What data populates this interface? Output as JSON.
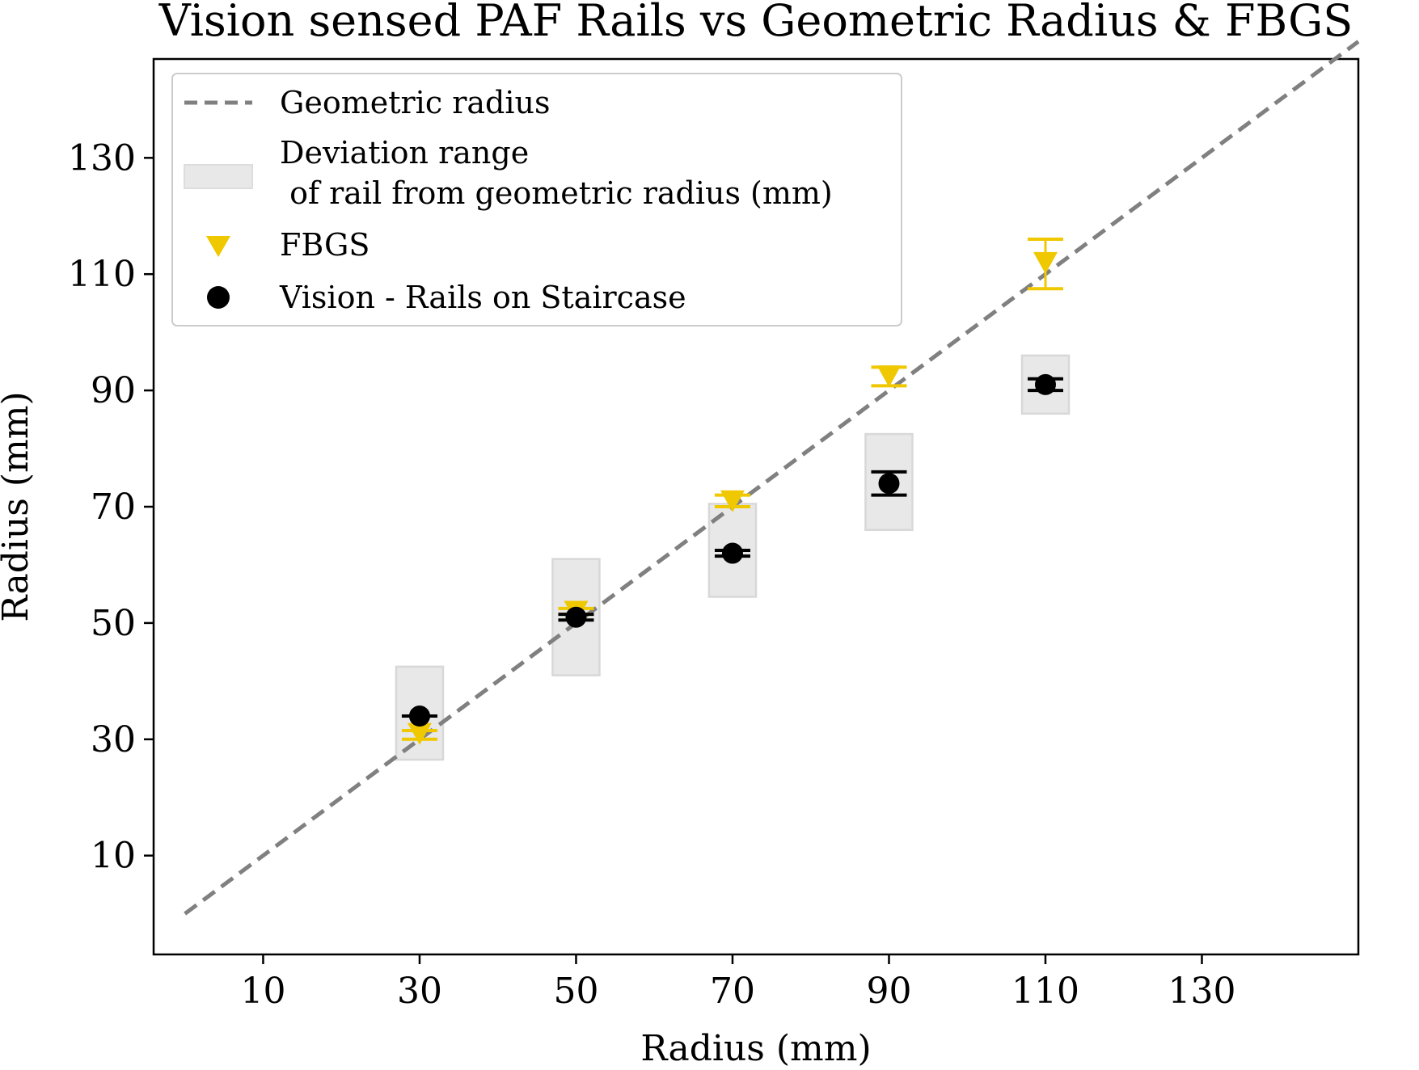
{
  "chart_data": {
    "type": "scatter",
    "title": "Vision sensed PAF Rails vs Geometric Radius & FBGS",
    "xlabel": "Radius (mm)",
    "ylabel": "Radius (mm)",
    "xlim": [
      -4,
      150
    ],
    "ylim": [
      -7,
      147
    ],
    "xticks": [
      10,
      30,
      50,
      70,
      90,
      110,
      130
    ],
    "yticks": [
      10,
      30,
      50,
      70,
      90,
      110,
      130
    ],
    "grid": false,
    "legend_position": "upper-left",
    "legend": [
      "Geometric radius",
      "Deviation range\n of rail from geometric radius (mm)",
      "FBGS",
      "Vision - Rails on Staircase"
    ],
    "geometric_line": {
      "x": [
        0,
        150
      ],
      "y": [
        0,
        150
      ],
      "color": "#808080"
    },
    "deviation_boxes": {
      "color": "#e8e8e8",
      "x": [
        30,
        50,
        70,
        90,
        110
      ],
      "y_low": [
        26.5,
        41,
        54.5,
        66,
        86
      ],
      "y_high": [
        42.5,
        61,
        70.5,
        82.5,
        96
      ]
    },
    "series": [
      {
        "name": "FBGS",
        "marker": "triangle-down",
        "color": "#f0c800",
        "x": [
          30,
          50,
          70,
          90,
          110
        ],
        "y": [
          31,
          52,
          71,
          92.5,
          112
        ],
        "err_low": [
          30,
          51.5,
          70,
          90.8,
          107.5
        ],
        "err_high": [
          31.5,
          52.5,
          72,
          94,
          116
        ]
      },
      {
        "name": "Vision - Rails on Staircase",
        "marker": "circle",
        "color": "#000000",
        "x": [
          30,
          50,
          70,
          90,
          110
        ],
        "y": [
          34,
          51,
          62,
          74,
          91
        ],
        "err_low": [
          34,
          50.5,
          61.5,
          72,
          90
        ],
        "err_high": [
          34,
          51.5,
          62.5,
          76,
          92
        ]
      }
    ]
  }
}
